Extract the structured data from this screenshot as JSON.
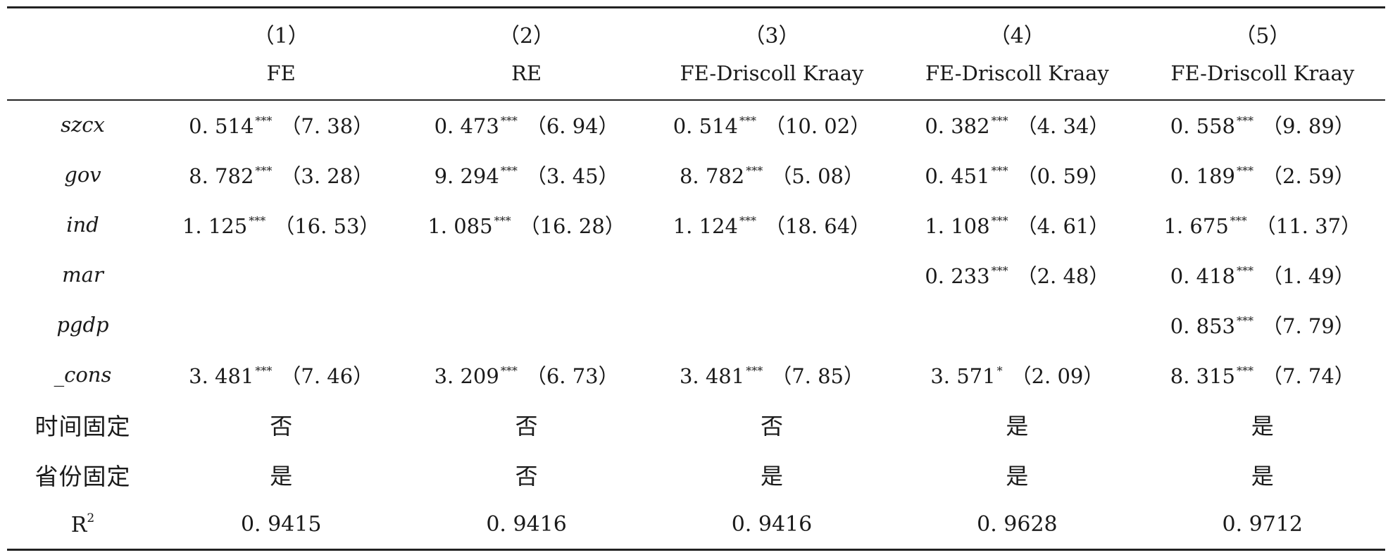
{
  "header": {
    "numbers": [
      "（1）",
      "（2）",
      "（3）",
      "（4）",
      "（5）"
    ],
    "models": [
      "FE",
      "RE",
      "FE-Driscoll Kraay",
      "FE-Driscoll Kraay",
      "FE-Driscoll Kraay"
    ]
  },
  "rows": [
    {
      "var": "szcx",
      "cells": [
        {
          "coef": "0. 514",
          "stars": "***",
          "t": "（7. 38）"
        },
        {
          "coef": "0. 473",
          "stars": "***",
          "t": "（6. 94）"
        },
        {
          "coef": "0. 514",
          "stars": "***",
          "t": "（10. 02）"
        },
        {
          "coef": "0. 382",
          "stars": "***",
          "t": "（4. 34）"
        },
        {
          "coef": "0. 558",
          "stars": "***",
          "t": "（9. 89）"
        }
      ]
    },
    {
      "var": "gov",
      "cells": [
        {
          "coef": "8. 782",
          "stars": "***",
          "t": "（3. 28）"
        },
        {
          "coef": "9. 294",
          "stars": "***",
          "t": "（3. 45）"
        },
        {
          "coef": "8. 782",
          "stars": "***",
          "t": "（5. 08）"
        },
        {
          "coef": "0. 451",
          "stars": "***",
          "t": "（0. 59）"
        },
        {
          "coef": "0. 189",
          "stars": "***",
          "t": "（2. 59）"
        }
      ]
    },
    {
      "var": "ind",
      "cells": [
        {
          "coef": "1. 125",
          "stars": "***",
          "t": "（16. 53）"
        },
        {
          "coef": "1. 085",
          "stars": "***",
          "t": "（16. 28）"
        },
        {
          "coef": "1. 124",
          "stars": "***",
          "t": "（18. 64）"
        },
        {
          "coef": "1. 108",
          "stars": "***",
          "t": "（4. 61）"
        },
        {
          "coef": "1. 675",
          "stars": "***",
          "t": "（11. 37）"
        }
      ]
    },
    {
      "var": "mar",
      "cells": [
        null,
        null,
        null,
        {
          "coef": "0. 233",
          "stars": "***",
          "t": "（2. 48）"
        },
        {
          "coef": "0. 418",
          "stars": "***",
          "t": "（1. 49）"
        }
      ]
    },
    {
      "var": "pgdp",
      "cells": [
        null,
        null,
        null,
        null,
        {
          "coef": "0. 853",
          "stars": "***",
          "t": "（7. 79）"
        }
      ]
    },
    {
      "var": "_cons",
      "cells": [
        {
          "coef": "3. 481",
          "stars": "***",
          "t": "（7. 46）"
        },
        {
          "coef": "3. 209",
          "stars": "***",
          "t": "（6. 73）"
        },
        {
          "coef": "3. 481",
          "stars": "***",
          "t": "（7. 85）"
        },
        {
          "coef": "3. 571",
          "stars": "*",
          "t": "（2. 09）"
        },
        {
          "coef": "8. 315",
          "stars": "***",
          "t": "（7. 74）"
        }
      ]
    }
  ],
  "fixed_effects": [
    {
      "label": "时间固定",
      "values": [
        "否",
        "否",
        "否",
        "是",
        "是"
      ]
    },
    {
      "label": "省份固定",
      "values": [
        "是",
        "否",
        "是",
        "是",
        "是"
      ]
    }
  ],
  "r2": {
    "label": "R",
    "sup": "2",
    "values": [
      "0. 9415",
      "0. 9416",
      "0. 9416",
      "0. 9628",
      "0. 9712"
    ]
  }
}
